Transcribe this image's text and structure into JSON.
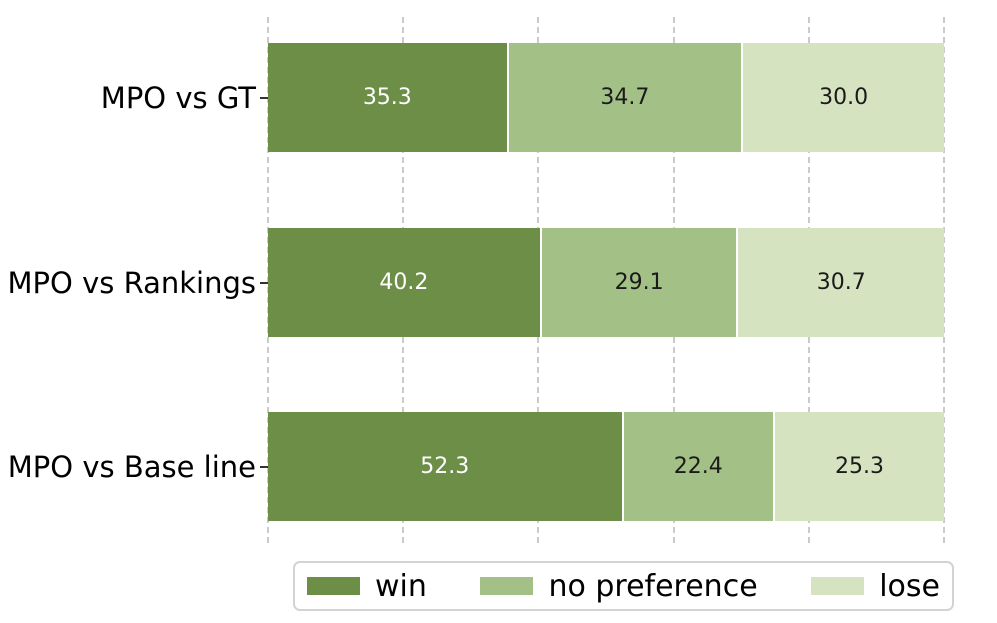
{
  "chart_data": {
    "type": "bar",
    "orientation": "horizontal",
    "stacked": true,
    "title": "",
    "xlabel": "",
    "ylabel": "",
    "categories": [
      "MPO vs GT",
      "MPO vs Rankings",
      "MPO vs Base line"
    ],
    "series": [
      {
        "name": "win",
        "color": "#6c8e46",
        "label_color": "#ffffff",
        "values": [
          35.3,
          40.2,
          52.3
        ],
        "labels": [
          "35.3",
          "40.2",
          "52.3"
        ]
      },
      {
        "name": "no preference",
        "color": "#a3c187",
        "label_color": "#1a1a1a",
        "values": [
          34.7,
          29.1,
          22.4
        ],
        "labels": [
          "34.7",
          "29.1",
          "22.4"
        ]
      },
      {
        "name": "lose",
        "color": "#d6e3c1",
        "label_color": "#1a1a1a",
        "values": [
          30.0,
          30.7,
          25.3
        ],
        "labels": [
          "30.0",
          "30.7",
          "25.3"
        ]
      }
    ],
    "xlim": [
      0,
      100
    ],
    "grid": {
      "show": true,
      "axis": "x",
      "positions_pct": [
        0,
        20,
        40,
        60,
        80,
        100
      ],
      "style": "dashed",
      "color": "#cbcbcb"
    },
    "segment_separator_color": "#ffffff",
    "legend": {
      "position": "bottom",
      "entries": [
        "win",
        "no preference",
        "lose"
      ],
      "border_color": "#d3d3d3"
    }
  }
}
